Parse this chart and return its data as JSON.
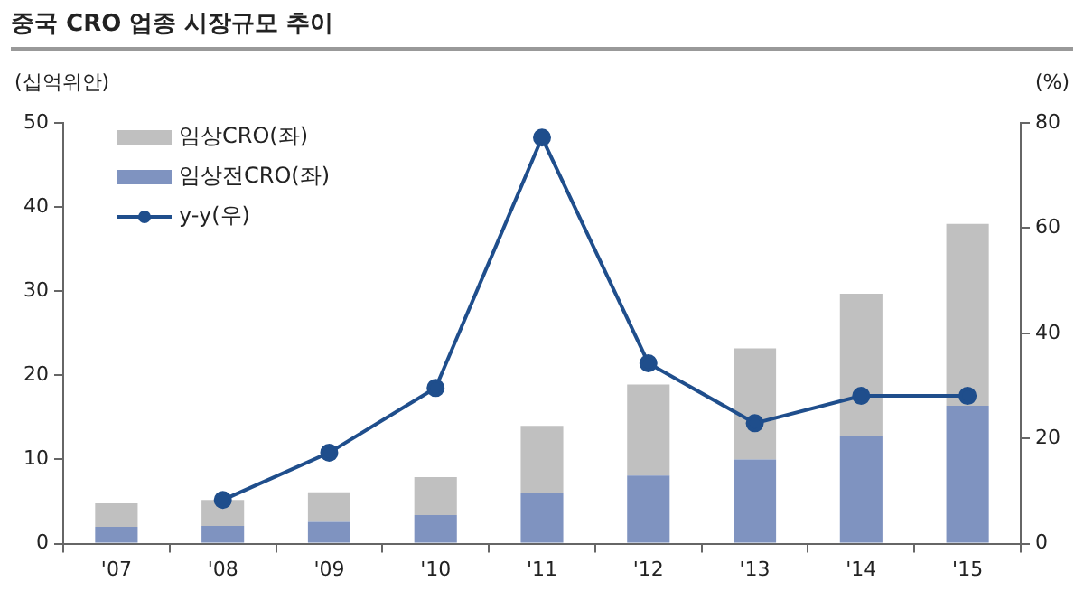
{
  "chart_data": {
    "type": "bar",
    "title": "중국 CRO 업종 시장규모 추이",
    "ylabel": "(십억위안)",
    "y2label": "(%)",
    "categories": [
      "'07",
      "'08",
      "'09",
      "'10",
      "'11",
      "'12",
      "'13",
      "'14",
      "'15"
    ],
    "stacked": true,
    "series": [
      {
        "name": "임상전CRO(좌)",
        "color": "#7f93c0",
        "values": [
          2.0,
          2.1,
          2.6,
          3.4,
          6.0,
          8.1,
          10.0,
          12.8,
          16.4
        ]
      },
      {
        "name": "임상CRO(좌)",
        "color": "#c0c0c0",
        "values": [
          2.8,
          3.1,
          3.5,
          4.5,
          8.0,
          10.8,
          13.2,
          16.9,
          21.6
        ]
      },
      {
        "name": "y-y(우)",
        "type": "line",
        "axis": "y2",
        "color": "#1f4e8c",
        "marker": "circle",
        "line_style": "solid",
        "values": [
          null,
          8.3,
          17.3,
          29.6,
          77.2,
          34.3,
          22.9,
          28.1,
          28.1
        ]
      }
    ],
    "ylim": [
      0,
      50
    ],
    "yticks": [
      0,
      10,
      20,
      30,
      40,
      50
    ],
    "y2lim": [
      0,
      80
    ],
    "y2ticks": [
      0,
      20,
      40,
      60,
      80
    ],
    "grid": false,
    "legend": "top left"
  }
}
